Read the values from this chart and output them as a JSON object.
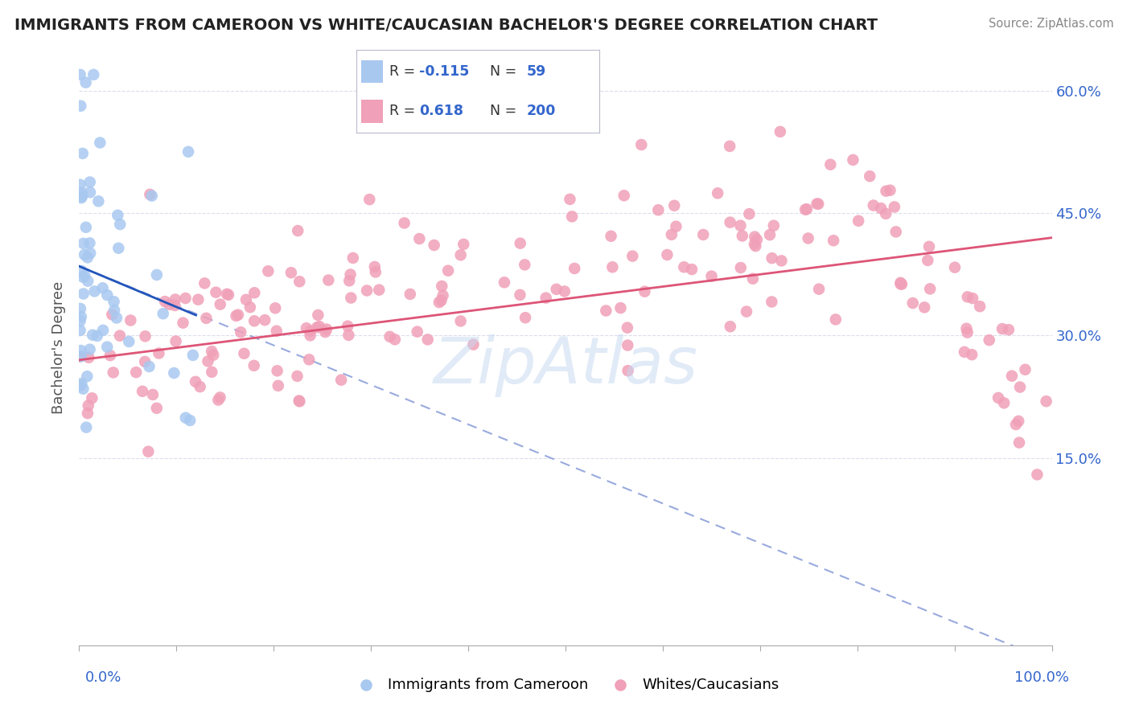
{
  "title": "IMMIGRANTS FROM CAMEROON VS WHITE/CAUCASIAN BACHELOR'S DEGREE CORRELATION CHART",
  "source": "Source: ZipAtlas.com",
  "ylabel": "Bachelor's Degree",
  "blue_color": "#A8C8F0",
  "pink_color": "#F0A0B8",
  "blue_line_color": "#2255BB",
  "pink_line_color": "#DD5577",
  "dashed_line_color": "#99AADD",
  "watermark_color": "#C5D8F0",
  "bg_color": "#FFFFFF",
  "grid_color": "#DDDDEE",
  "right_tick_color": "#3366CC",
  "bottom_tick_color": "#3366CC",
  "xlim": [
    0.0,
    1.0
  ],
  "ylim": [
    -0.08,
    0.65
  ],
  "yticks": [
    0.15,
    0.3,
    0.45,
    0.6
  ],
  "ytick_labels": [
    "15.0%",
    "30.0%",
    "45.0%",
    "60.0%"
  ],
  "xtick_vals": [
    0.0,
    0.1,
    0.2,
    0.3,
    0.4,
    0.5,
    0.6,
    0.7,
    0.8,
    0.9,
    1.0
  ],
  "blue_line_x": [
    0.0,
    0.12
  ],
  "blue_line_y": [
    0.385,
    0.325
  ],
  "pink_line_x": [
    0.0,
    1.0
  ],
  "pink_line_y": [
    0.27,
    0.42
  ],
  "dashed_line_x": [
    0.0,
    1.0
  ],
  "dashed_line_y": [
    0.385,
    -0.1
  ],
  "legend_r1": "-0.115",
  "legend_n1": "59",
  "legend_r2": "0.618",
  "legend_n2": "200",
  "watermark": "ZipAtlas",
  "bottom_left_label": "0.0%",
  "bottom_right_label": "100.0%",
  "legend1_label": "Immigrants from Cameroon",
  "legend2_label": "Whites/Caucasians"
}
